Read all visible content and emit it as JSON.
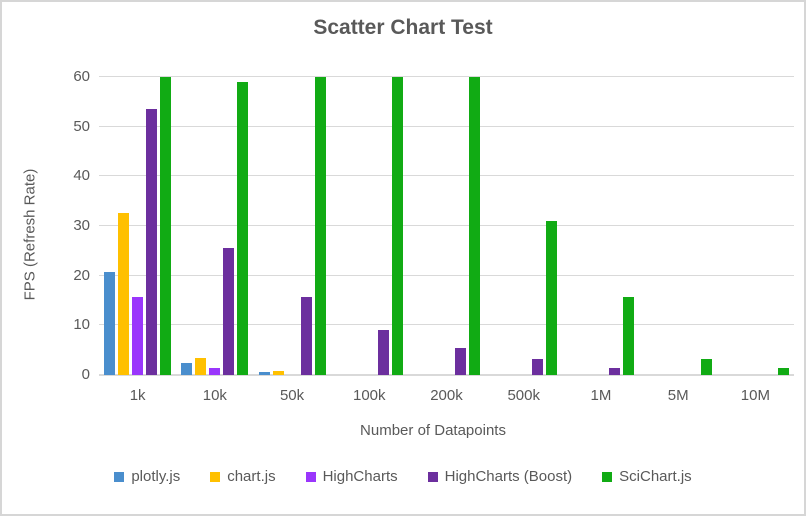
{
  "window": {
    "background": "#ffffff",
    "border_color": "#d6d6d6"
  },
  "chart_data": {
    "type": "bar",
    "title": "Scatter Chart Test",
    "xlabel": "Number of Datapoints",
    "ylabel": "FPS (Refresh Rate)",
    "ylim": [
      0,
      60
    ],
    "yticks": [
      0,
      10,
      20,
      30,
      40,
      50,
      60
    ],
    "grid": true,
    "legend_position": "bottom",
    "text_color": "#595959",
    "gridline_color": "#d9d9d9",
    "categories": [
      "1k",
      "10k",
      "50k",
      "100k",
      "200k",
      "500k",
      "1M",
      "5M",
      "10M"
    ],
    "series": [
      {
        "name": "plotly.js",
        "color": "#4A8ECD",
        "values": [
          20.8,
          2.5,
          0.6,
          0,
          0,
          0,
          0,
          0,
          0
        ]
      },
      {
        "name": "chart.js",
        "color": "#FFC000",
        "values": [
          32.7,
          3.5,
          0.8,
          0,
          0,
          0,
          0,
          0,
          0
        ]
      },
      {
        "name": "HighCharts",
        "color": "#9A36FC",
        "values": [
          15.7,
          1.5,
          0,
          0,
          0,
          0,
          0,
          0,
          0
        ]
      },
      {
        "name": "HighCharts (Boost)",
        "color": "#6C2F9E",
        "values": [
          53.5,
          25.5,
          15.8,
          9,
          5.5,
          3.3,
          1.5,
          0,
          0
        ]
      },
      {
        "name": "SciChart.js",
        "color": "#11AB14",
        "values": [
          60,
          59,
          60,
          60,
          60,
          31,
          15.7,
          3.2,
          1.5
        ]
      }
    ]
  }
}
